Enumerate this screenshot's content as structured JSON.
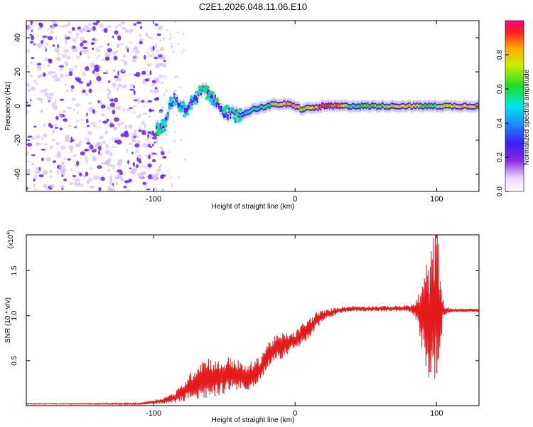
{
  "figure_title": "C2E1.2026.048.11.06.E10",
  "colors": {
    "snr_line": "#e41a1c",
    "frame": "#000000",
    "cool": "#6a1ee6",
    "faint": "#d8c2f5"
  },
  "chart_data": [
    {
      "type": "heatmap",
      "title": "C2E1.2026.048.11.06.E10",
      "xlabel": "Height of straight line (km)",
      "ylabel": "Frequency (Hz)",
      "xlim": [
        -190,
        130
      ],
      "ylim": [
        -50,
        50
      ],
      "xticks": [
        -100,
        0,
        100
      ],
      "yticks": [
        -40,
        -20,
        0,
        20,
        40
      ],
      "tick_labels_x": [
        "-100",
        "0",
        "100"
      ],
      "tick_labels_y": [
        "-40",
        "-20",
        "0",
        "20",
        "40"
      ],
      "colorbar": {
        "label": "Normalized spectral amplitude",
        "range": [
          0,
          1
        ],
        "ticks": [
          0.0,
          0.2,
          0.4,
          0.6,
          0.8
        ],
        "tick_labels": [
          "0.0",
          "0.2",
          "0.4",
          "0.6",
          "0.8"
        ],
        "colormap": "rainbow"
      },
      "ridge": {
        "x": [
          -98,
          -93,
          -90,
          -88,
          -85,
          -82,
          -78,
          -75,
          -70,
          -65,
          -60,
          -55,
          -50,
          -45,
          -40,
          -35,
          -30,
          -25,
          -20,
          -15,
          -10,
          -5,
          0,
          5,
          10,
          15,
          20,
          30,
          40,
          50,
          60,
          70,
          80,
          90,
          95,
          100,
          110,
          120,
          130
        ],
        "y": [
          -14,
          -12,
          -6,
          3,
          4,
          2,
          -2,
          0,
          4,
          10,
          6,
          1,
          -3,
          -5,
          -6,
          -4,
          -2,
          -1,
          0,
          1,
          1,
          1,
          0,
          -2,
          -1,
          -1,
          0,
          0,
          0,
          0,
          0,
          0,
          0,
          0,
          0,
          0,
          0,
          0,
          0
        ],
        "amplitude": [
          0.3,
          0.3,
          0.35,
          0.35,
          0.35,
          0.3,
          0.3,
          0.3,
          0.35,
          0.35,
          0.3,
          0.3,
          0.35,
          0.4,
          0.4,
          0.45,
          0.5,
          0.55,
          0.6,
          0.7,
          0.8,
          0.85,
          0.9,
          0.7,
          0.75,
          0.85,
          0.95,
          0.9,
          0.55,
          0.6,
          0.65,
          0.75,
          0.8,
          0.7,
          0.6,
          0.7,
          0.75,
          0.8,
          0.8
        ]
      },
      "noise_region_x": [
        -190,
        -92
      ],
      "noise_density_note": "scattered low-amplitude speckle"
    },
    {
      "type": "line",
      "title": "",
      "xlabel": "Height of straight line (km)",
      "ylabel": "SNR (10 * v/v)",
      "y_scale_label": "(x10^4)",
      "y_multiplier_base": "(x10",
      "y_multiplier_exp": "4",
      "xlim": [
        -190,
        130
      ],
      "ylim": [
        0,
        1.9
      ],
      "xticks": [
        -100,
        0,
        100
      ],
      "yticks": [
        0.5,
        1.0,
        1.5
      ],
      "tick_labels_x": [
        "-100",
        "0",
        "100"
      ],
      "tick_labels_y": [
        "0.5",
        "1.0",
        "1.5"
      ],
      "series": [
        {
          "name": "SNR",
          "x": [
            -190,
            -150,
            -110,
            -95,
            -85,
            -80,
            -75,
            -70,
            -65,
            -60,
            -55,
            -50,
            -45,
            -40,
            -35,
            -30,
            -25,
            -20,
            -15,
            -10,
            -5,
            0,
            5,
            10,
            15,
            20,
            30,
            40,
            50,
            60,
            70,
            80,
            85,
            90,
            95,
            98,
            100,
            102,
            105,
            110,
            120,
            130
          ],
          "y": [
            0.02,
            0.02,
            0.02,
            0.05,
            0.09,
            0.14,
            0.2,
            0.26,
            0.3,
            0.33,
            0.3,
            0.33,
            0.36,
            0.33,
            0.3,
            0.35,
            0.4,
            0.55,
            0.62,
            0.66,
            0.7,
            0.72,
            0.8,
            0.85,
            0.95,
            1.0,
            1.06,
            1.08,
            1.08,
            1.08,
            1.08,
            1.08,
            1.07,
            1.0,
            1.0,
            1.05,
            1.2,
            1.1,
            1.06,
            1.06,
            1.06,
            1.06
          ],
          "noise_amplitude": [
            0.005,
            0.005,
            0.01,
            0.03,
            0.06,
            0.1,
            0.15,
            0.2,
            0.25,
            0.22,
            0.2,
            0.2,
            0.2,
            0.18,
            0.15,
            0.15,
            0.15,
            0.15,
            0.15,
            0.15,
            0.12,
            0.1,
            0.12,
            0.12,
            0.1,
            0.06,
            0.04,
            0.03,
            0.03,
            0.03,
            0.03,
            0.04,
            0.08,
            0.4,
            0.75,
            0.85,
            0.9,
            0.6,
            0.06,
            0.02,
            0.02,
            0.02
          ]
        }
      ]
    }
  ]
}
